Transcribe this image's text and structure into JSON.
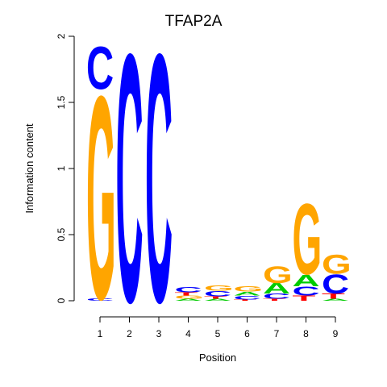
{
  "chart_data": {
    "type": "sequence-logo",
    "title": "TFAP2A",
    "xlabel": "Position",
    "ylabel": "Information content",
    "ylim": [
      0,
      2
    ],
    "yticks": [
      "0",
      "0.5",
      "1",
      "1.5",
      "2"
    ],
    "positions": [
      "1",
      "2",
      "3",
      "4",
      "5",
      "6",
      "7",
      "8",
      "9"
    ],
    "colors": {
      "A": "#00cc00",
      "C": "#0000ff",
      "G": "#ffa500",
      "T": "#ff0000"
    },
    "stacks": [
      [
        {
          "letter": "C",
          "height": 0.02
        },
        {
          "letter": "G",
          "height": 1.58
        },
        {
          "letter": "C",
          "height": 0.33
        }
      ],
      [
        {
          "letter": "C",
          "height": 1.93
        }
      ],
      [
        {
          "letter": "C",
          "height": 1.93
        }
      ],
      [
        {
          "letter": "A",
          "height": 0.015
        },
        {
          "letter": "G",
          "height": 0.025
        },
        {
          "letter": "T",
          "height": 0.025
        },
        {
          "letter": "C",
          "height": 0.04
        }
      ],
      [
        {
          "letter": "A",
          "height": 0.015
        },
        {
          "letter": "T",
          "height": 0.02
        },
        {
          "letter": "C",
          "height": 0.04
        },
        {
          "letter": "G",
          "height": 0.04
        }
      ],
      [
        {
          "letter": "T",
          "height": 0.01
        },
        {
          "letter": "C",
          "height": 0.03
        },
        {
          "letter": "A",
          "height": 0.03
        },
        {
          "letter": "G",
          "height": 0.04
        }
      ],
      [
        {
          "letter": "T",
          "height": 0.015
        },
        {
          "letter": "C",
          "height": 0.04
        },
        {
          "letter": "A",
          "height": 0.08
        },
        {
          "letter": "G",
          "height": 0.13
        }
      ],
      [
        {
          "letter": "T",
          "height": 0.04
        },
        {
          "letter": "C",
          "height": 0.07
        },
        {
          "letter": "A",
          "height": 0.09
        },
        {
          "letter": "G",
          "height": 0.55
        }
      ],
      [
        {
          "letter": "A",
          "height": 0.015
        },
        {
          "letter": "T",
          "height": 0.04
        },
        {
          "letter": "C",
          "height": 0.15
        },
        {
          "letter": "G",
          "height": 0.15
        }
      ]
    ]
  }
}
